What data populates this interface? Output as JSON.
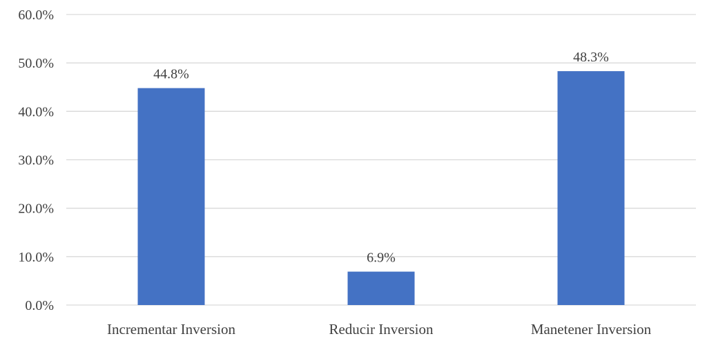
{
  "chart_data": {
    "type": "bar",
    "title": "",
    "xlabel": "",
    "ylabel": "",
    "categories": [
      "Incrementar Inversion",
      "Reducir Inversion",
      "Manetener Inversion"
    ],
    "values": [
      44.8,
      6.9,
      48.3
    ],
    "data_labels": [
      "44.8%",
      "6.9%",
      "48.3%"
    ],
    "ylim": [
      0,
      60
    ],
    "yticks": [
      0,
      10,
      20,
      30,
      40,
      50,
      60
    ],
    "ytick_labels": [
      "0.0%",
      "10.0%",
      "20.0%",
      "30.0%",
      "40.0%",
      "50.0%",
      "60.0%"
    ],
    "grid": true,
    "legend": "none",
    "bar_color": "#4472C4",
    "grid_color": "#D9D9D9",
    "text_color": "#404040"
  }
}
